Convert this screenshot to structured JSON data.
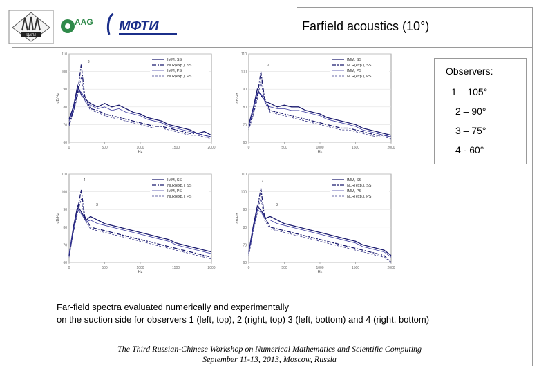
{
  "header": {
    "logo1_text": "ЦАГИ",
    "logo2_text": "AAG",
    "logo3_text": "МФТИ",
    "title": "Farfield acoustics (10°)"
  },
  "observers": {
    "header": "Observers:",
    "items": [
      "1 – 105°",
      "2 – 90°",
      "3 – 75°",
      "4 - 60°"
    ]
  },
  "caption": {
    "line1": "Far-field spectra evaluated numerically and experimentally",
    "line2": "on the suction side for observers 1 (left, top), 2 (right, top) 3 (left, bottom) and 4 (right, bottom)"
  },
  "footer": {
    "line1": "The Third Russian-Chinese Workshop on Numerical Mathematics and Scientific Computing",
    "line2": "September 11-13, 2013, Moscow, Russia"
  },
  "colors": {
    "imm_ss": "#1a1a6e",
    "nlr_ss": "#1a1a6e",
    "imm_ps": "#3a3aa0",
    "nlr_ps": "#3a3a8a"
  },
  "chart_data": [
    {
      "type": "line",
      "xlabel": "Hz",
      "ylabel": "dB/Hz",
      "xlim": [
        0,
        2000
      ],
      "ylim": [
        60,
        110
      ],
      "xticks": [
        "0",
        "500",
        "1000",
        "1500",
        "2000"
      ],
      "yticks": [
        "60",
        "70",
        "80",
        "90",
        "100",
        "110"
      ],
      "annotations": [
        "3"
      ],
      "legend": [
        "IMM, SS",
        "NLR(exp.), SS",
        "IMM, PS",
        "NLR(exp.), PS"
      ],
      "series": [
        {
          "name": "IMM, SS",
          "x": [
            0,
            60,
            120,
            180,
            240,
            300,
            400,
            500,
            600,
            700,
            800,
            900,
            1000,
            1100,
            1200,
            1300,
            1400,
            1500,
            1600,
            1700,
            1800,
            1900,
            2000
          ],
          "y": [
            73,
            80,
            92,
            86,
            84,
            82,
            80,
            82,
            80,
            81,
            79,
            77,
            76,
            74,
            73,
            72,
            70,
            69,
            68,
            67,
            65,
            66,
            64
          ]
        },
        {
          "name": "NLR(exp.), SS",
          "x": [
            0,
            60,
            120,
            170,
            220,
            300,
            400,
            500,
            600,
            700,
            800,
            900,
            1000,
            1100,
            1200,
            1300,
            1400,
            1500,
            1600,
            1700,
            1800,
            1900,
            2000
          ],
          "y": [
            70,
            78,
            88,
            104,
            86,
            79,
            78,
            76,
            75,
            74,
            73,
            72,
            71,
            70,
            69,
            69,
            68,
            67,
            66,
            65,
            65,
            64,
            63
          ]
        },
        {
          "name": "IMM, PS",
          "x": [
            0,
            60,
            120,
            180,
            240,
            300,
            400,
            500,
            600,
            700,
            800,
            900,
            1000,
            1100,
            1200,
            1300,
            1400,
            1500,
            1600,
            1700,
            1800,
            1900,
            2000
          ],
          "y": [
            72,
            79,
            90,
            88,
            82,
            81,
            79,
            80,
            78,
            79,
            77,
            76,
            75,
            73,
            72,
            71,
            69,
            68,
            67,
            66,
            65,
            64,
            63
          ]
        },
        {
          "name": "NLR(exp.), PS",
          "x": [
            0,
            60,
            120,
            170,
            220,
            300,
            400,
            500,
            600,
            700,
            800,
            900,
            1000,
            1100,
            1200,
            1300,
            1400,
            1500,
            1600,
            1700,
            1800,
            1900,
            2000
          ],
          "y": [
            69,
            77,
            86,
            97,
            84,
            78,
            77,
            75,
            74,
            73,
            72,
            71,
            70,
            69,
            68,
            68,
            67,
            66,
            65,
            64,
            64,
            63,
            62
          ]
        }
      ]
    },
    {
      "type": "line",
      "xlabel": "Hz",
      "ylabel": "dB/Hz",
      "xlim": [
        0,
        2000
      ],
      "ylim": [
        60,
        110
      ],
      "xticks": [
        "0",
        "500",
        "1000",
        "1500",
        "2000"
      ],
      "yticks": [
        "60",
        "70",
        "80",
        "90",
        "100",
        "110"
      ],
      "annotations": [
        "2"
      ],
      "legend": [
        "IMM, SS",
        "NLR(exp.), SS",
        "IMM, PS",
        "NLR(exp.), PS"
      ],
      "series": [
        {
          "name": "IMM, SS",
          "x": [
            0,
            60,
            120,
            180,
            240,
            300,
            400,
            500,
            600,
            700,
            800,
            900,
            1000,
            1100,
            1200,
            1300,
            1400,
            1500,
            1600,
            1700,
            1800,
            1900,
            2000
          ],
          "y": [
            70,
            79,
            90,
            86,
            83,
            82,
            80,
            81,
            80,
            80,
            78,
            77,
            76,
            74,
            73,
            72,
            71,
            70,
            68,
            67,
            66,
            65,
            64
          ]
        },
        {
          "name": "NLR(exp.), SS",
          "x": [
            0,
            60,
            120,
            170,
            220,
            300,
            400,
            500,
            600,
            700,
            800,
            900,
            1000,
            1100,
            1200,
            1300,
            1400,
            1500,
            1600,
            1700,
            1800,
            1900,
            2000
          ],
          "y": [
            68,
            76,
            86,
            100,
            85,
            78,
            77,
            76,
            75,
            74,
            73,
            72,
            71,
            70,
            69,
            68,
            68,
            67,
            66,
            65,
            64,
            64,
            63
          ]
        },
        {
          "name": "IMM, PS",
          "x": [
            0,
            60,
            120,
            180,
            240,
            300,
            400,
            500,
            600,
            700,
            800,
            900,
            1000,
            1100,
            1200,
            1300,
            1400,
            1500,
            1600,
            1700,
            1800,
            1900,
            2000
          ],
          "y": [
            69,
            78,
            88,
            87,
            82,
            80,
            79,
            79,
            78,
            78,
            77,
            76,
            75,
            73,
            72,
            71,
            70,
            69,
            67,
            66,
            65,
            64,
            63
          ]
        },
        {
          "name": "NLR(exp.), PS",
          "x": [
            0,
            60,
            120,
            170,
            220,
            300,
            400,
            500,
            600,
            700,
            800,
            900,
            1000,
            1100,
            1200,
            1300,
            1400,
            1500,
            1600,
            1700,
            1800,
            1900,
            2000
          ],
          "y": [
            67,
            75,
            84,
            95,
            83,
            77,
            76,
            75,
            74,
            73,
            72,
            71,
            70,
            69,
            68,
            67,
            67,
            66,
            65,
            64,
            63,
            63,
            62
          ]
        }
      ]
    },
    {
      "type": "line",
      "xlabel": "Hz",
      "ylabel": "dB/Hz",
      "xlim": [
        0,
        2000
      ],
      "ylim": [
        60,
        110
      ],
      "xticks": [
        "0",
        "500",
        "1000",
        "1500",
        "2000"
      ],
      "yticks": [
        "60",
        "70",
        "80",
        "90",
        "100",
        "110"
      ],
      "annotations": [
        "4",
        "3"
      ],
      "legend": [
        "IMM, SS",
        "NLR(exp.), SS",
        "IMM, PS",
        "NLR(exp.), PS"
      ],
      "series": [
        {
          "name": "IMM, SS",
          "x": [
            0,
            60,
            120,
            180,
            240,
            300,
            400,
            500,
            600,
            700,
            800,
            900,
            1000,
            1100,
            1200,
            1300,
            1400,
            1500,
            1600,
            1700,
            1800,
            1900,
            2000
          ],
          "y": [
            64,
            80,
            92,
            88,
            84,
            86,
            84,
            82,
            81,
            80,
            79,
            78,
            77,
            76,
            75,
            74,
            73,
            71,
            70,
            69,
            68,
            67,
            66
          ]
        },
        {
          "name": "NLR(exp.), SS",
          "x": [
            0,
            60,
            120,
            170,
            220,
            300,
            400,
            500,
            600,
            700,
            800,
            900,
            1000,
            1100,
            1200,
            1300,
            1400,
            1500,
            1600,
            1700,
            1800,
            1900,
            2000
          ],
          "y": [
            64,
            78,
            90,
            101,
            86,
            80,
            79,
            78,
            77,
            76,
            75,
            74,
            73,
            72,
            71,
            70,
            69,
            68,
            67,
            66,
            65,
            64,
            63
          ]
        },
        {
          "name": "IMM, PS",
          "x": [
            0,
            60,
            120,
            180,
            240,
            300,
            400,
            500,
            600,
            700,
            800,
            900,
            1000,
            1100,
            1200,
            1300,
            1400,
            1500,
            1600,
            1700,
            1800,
            1900,
            2000
          ],
          "y": [
            65,
            79,
            90,
            87,
            83,
            84,
            82,
            81,
            80,
            79,
            78,
            77,
            76,
            75,
            74,
            73,
            72,
            70,
            69,
            68,
            67,
            66,
            65
          ]
        },
        {
          "name": "NLR(exp.), PS",
          "x": [
            0,
            60,
            120,
            170,
            220,
            300,
            400,
            500,
            600,
            700,
            800,
            900,
            1000,
            1100,
            1200,
            1300,
            1400,
            1500,
            1600,
            1700,
            1800,
            1900,
            2000
          ],
          "y": [
            63,
            77,
            88,
            96,
            84,
            79,
            78,
            77,
            76,
            75,
            74,
            73,
            72,
            71,
            70,
            69,
            68,
            67,
            66,
            65,
            64,
            63,
            62
          ]
        }
      ]
    },
    {
      "type": "line",
      "xlabel": "Hz",
      "ylabel": "dB/Hz",
      "xlim": [
        0,
        2000
      ],
      "ylim": [
        60,
        110
      ],
      "xticks": [
        "0",
        "500",
        "1000",
        "1500",
        "2000"
      ],
      "yticks": [
        "60",
        "70",
        "80",
        "90",
        "100",
        "110"
      ],
      "annotations": [
        "4",
        "3"
      ],
      "legend": [
        "IMM, SS",
        "NLR(exp.), SS",
        "IMM, PS",
        "NLR(exp.), PS"
      ],
      "series": [
        {
          "name": "IMM, SS",
          "x": [
            0,
            60,
            120,
            180,
            240,
            300,
            400,
            500,
            600,
            700,
            800,
            900,
            1000,
            1100,
            1200,
            1300,
            1400,
            1500,
            1600,
            1700,
            1800,
            1900,
            2000
          ],
          "y": [
            66,
            80,
            92,
            89,
            85,
            86,
            84,
            82,
            81,
            80,
            79,
            78,
            77,
            76,
            75,
            74,
            73,
            72,
            70,
            69,
            68,
            67,
            64
          ]
        },
        {
          "name": "NLR(exp.), SS",
          "x": [
            0,
            60,
            120,
            170,
            220,
            300,
            400,
            500,
            600,
            700,
            800,
            900,
            1000,
            1100,
            1200,
            1300,
            1400,
            1500,
            1600,
            1700,
            1800,
            1900,
            2000
          ],
          "y": [
            65,
            78,
            90,
            102,
            86,
            80,
            79,
            78,
            77,
            76,
            75,
            74,
            73,
            72,
            71,
            70,
            69,
            68,
            67,
            66,
            65,
            64,
            60
          ]
        },
        {
          "name": "IMM, PS",
          "x": [
            0,
            60,
            120,
            180,
            240,
            300,
            400,
            500,
            600,
            700,
            800,
            900,
            1000,
            1100,
            1200,
            1300,
            1400,
            1500,
            1600,
            1700,
            1800,
            1900,
            2000
          ],
          "y": [
            65,
            79,
            90,
            88,
            84,
            84,
            82,
            81,
            80,
            79,
            78,
            77,
            76,
            75,
            74,
            73,
            72,
            71,
            69,
            68,
            67,
            66,
            63
          ]
        },
        {
          "name": "NLR(exp.), PS",
          "x": [
            0,
            60,
            120,
            170,
            220,
            300,
            400,
            500,
            600,
            700,
            800,
            900,
            1000,
            1100,
            1200,
            1300,
            1400,
            1500,
            1600,
            1700,
            1800,
            1900,
            2000
          ],
          "y": [
            64,
            77,
            88,
            97,
            84,
            79,
            78,
            77,
            76,
            75,
            74,
            73,
            72,
            71,
            70,
            69,
            68,
            67,
            66,
            65,
            64,
            63,
            60
          ]
        }
      ]
    }
  ]
}
